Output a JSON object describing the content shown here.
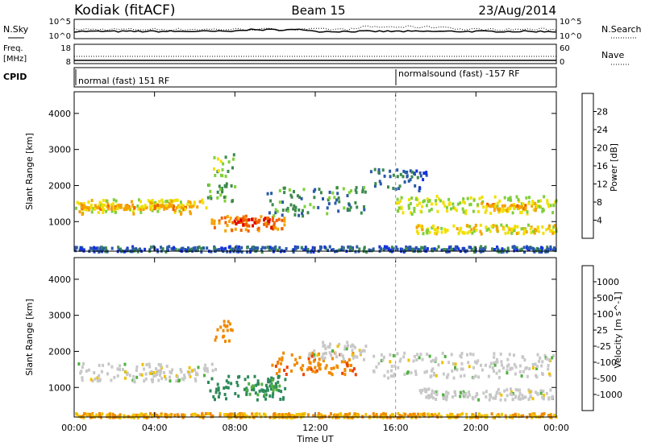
{
  "header": {
    "station": "Kodiak (fitACF)",
    "beam": "Beam 15",
    "date": "23/Aug/2014"
  },
  "noise_panel": {
    "left_label": "N.Sky",
    "right_label": "N.Search",
    "left_ticks": [
      "10^5",
      "10^0"
    ],
    "right_ticks": [
      "10^5",
      "10^0"
    ]
  },
  "freq_panel": {
    "left_label_1": "Freq.",
    "left_label_2": "[MHz]",
    "left_ticks": [
      "18",
      "8"
    ],
    "right_label": "Nave",
    "right_ticks": [
      "60",
      "0"
    ]
  },
  "cpid_panel": {
    "label": "CPID",
    "segments": [
      {
        "start_hour": 0,
        "text": "normal (fast) 151 RF"
      },
      {
        "start_hour": 16,
        "text": "normalsound (fast) -157 RF"
      }
    ]
  },
  "colors": {
    "power": [
      "#1530e0",
      "#2a5aa8",
      "#3d8a4c",
      "#7fcf3a",
      "#f0e000",
      "#f5a300",
      "#f06000",
      "#e00000"
    ],
    "velocity": [
      "#e00000",
      "#f04000",
      "#f08a00",
      "#f0c000",
      "#c8c8c8",
      "#50b040",
      "#2e8a5a",
      "#2a5aa8",
      "#1a2ab0"
    ],
    "ground_scatter": "#c8c8c8"
  },
  "power_colorbar": {
    "label": "Power [dB]",
    "ticks": [
      "28",
      "24",
      "20",
      "16",
      "12",
      "8",
      "4"
    ]
  },
  "velocity_colorbar": {
    "label": "Velocity [m s^-1]",
    "ticks": [
      "1000",
      "500",
      "100",
      "25",
      "-25",
      "-100",
      "-500",
      "-1000"
    ]
  },
  "chart_data": [
    {
      "type": "heatmap",
      "title": "Power",
      "xlabel": "Time UT",
      "ylabel": "Slant Range [km]",
      "x_ticks": [
        "00:00",
        "04:00",
        "08:00",
        "12:00",
        "16:00",
        "20:00",
        "00:00"
      ],
      "y_ticks": [
        1000,
        2000,
        3000,
        4000
      ],
      "xlim_hours": [
        0,
        24
      ],
      "ylim_km": [
        180,
        4600
      ],
      "bands": [
        {
          "t0": 0,
          "t1": 6.6,
          "r0": 1250,
          "r1": 1650,
          "level": 18
        },
        {
          "t0": 0.3,
          "t1": 5.8,
          "r0": 1380,
          "r1": 1500,
          "level": 22
        },
        {
          "t0": 6.6,
          "t1": 8,
          "r0": 1600,
          "r1": 2100,
          "level": 12
        },
        {
          "t0": 6.8,
          "t1": 10.5,
          "r0": 780,
          "r1": 1200,
          "level": 24
        },
        {
          "t0": 7.8,
          "t1": 9.8,
          "r0": 850,
          "r1": 1150,
          "level": 27
        },
        {
          "t0": 6.9,
          "t1": 7.9,
          "r0": 2300,
          "r1": 2900,
          "level": 14
        },
        {
          "t0": 9.5,
          "t1": 14.5,
          "r0": 1200,
          "r1": 2000,
          "level": 10
        },
        {
          "t0": 14.7,
          "t1": 17.5,
          "r0": 1900,
          "r1": 2500,
          "level": 7
        },
        {
          "t0": 16,
          "t1": 24,
          "r0": 1250,
          "r1": 1750,
          "level": 16
        },
        {
          "t0": 20,
          "t1": 23,
          "r0": 1350,
          "r1": 1550,
          "level": 21
        },
        {
          "t0": 17,
          "t1": 24,
          "r0": 700,
          "r1": 950,
          "level": 18
        },
        {
          "t0": 0,
          "t1": 24,
          "r0": 200,
          "r1": 350,
          "level": 6
        }
      ]
    },
    {
      "type": "heatmap",
      "title": "Velocity",
      "xlabel": "Time UT",
      "ylabel": "Slant Range [km]",
      "x_ticks": [
        "00:00",
        "04:00",
        "08:00",
        "12:00",
        "16:00",
        "20:00",
        "00:00"
      ],
      "y_ticks": [
        1000,
        2000,
        3000,
        4000
      ],
      "xlim_hours": [
        0,
        24
      ],
      "ylim_km": [
        180,
        4600
      ],
      "bands": [
        {
          "t0": 0,
          "t1": 7,
          "r0": 1200,
          "r1": 1700,
          "value": 0
        },
        {
          "t0": 6.6,
          "t1": 10.5,
          "r0": 700,
          "r1": 1350,
          "value": 300
        },
        {
          "t0": 8.5,
          "t1": 10.2,
          "r0": 800,
          "r1": 1250,
          "value": 120
        },
        {
          "t0": 6.9,
          "t1": 7.9,
          "r0": 2300,
          "r1": 2900,
          "value": -200
        },
        {
          "t0": 9.8,
          "t1": 14.2,
          "r0": 1400,
          "r1": 2000,
          "value": -400
        },
        {
          "t0": 11.5,
          "t1": 14.5,
          "r0": 1800,
          "r1": 2300,
          "value": 0
        },
        {
          "t0": 14.7,
          "t1": 24,
          "r0": 1300,
          "r1": 2000,
          "value": 0
        },
        {
          "t0": 17,
          "t1": 24,
          "r0": 700,
          "r1": 1000,
          "value": 0
        },
        {
          "t0": 0,
          "t1": 24,
          "r0": 200,
          "r1": 320,
          "value": -100
        }
      ]
    }
  ]
}
